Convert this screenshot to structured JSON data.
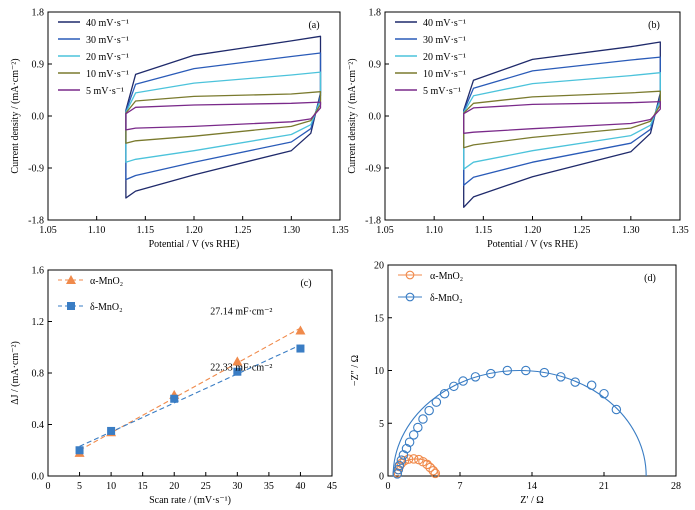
{
  "chart_data": [
    {
      "id": "a",
      "type": "line",
      "panel_label": "(a)",
      "xlabel": "Potential / V (vs RHE)",
      "ylabel": "Current density / (mA·cm⁻²)",
      "xlim": [
        1.05,
        1.35
      ],
      "ylim": [
        -1.8,
        1.8
      ],
      "xticks": [
        "1.05",
        "1.10",
        "1.15",
        "1.20",
        "1.25",
        "1.30",
        "1.35"
      ],
      "yticks": [
        "-1.8",
        "-0.9",
        "0.0",
        "0.9",
        "1.8"
      ],
      "legend_position": "top-left",
      "series": [
        {
          "name": "40 mV·s⁻¹",
          "color": "#1f2a6b",
          "x": [
            1.13,
            1.14,
            1.2,
            1.3,
            1.33,
            1.33,
            1.32,
            1.3,
            1.2,
            1.14,
            1.13,
            1.13
          ],
          "y": [
            0.1,
            0.72,
            1.05,
            1.3,
            1.38,
            0.4,
            -0.3,
            -0.6,
            -1.02,
            -1.3,
            -1.42,
            0.1
          ]
        },
        {
          "name": "30 mV·s⁻¹",
          "color": "#2a5bb8",
          "x": [
            1.13,
            1.14,
            1.2,
            1.3,
            1.33,
            1.33,
            1.32,
            1.3,
            1.2,
            1.14,
            1.13,
            1.13
          ],
          "y": [
            0.08,
            0.55,
            0.82,
            1.03,
            1.09,
            0.35,
            -0.22,
            -0.45,
            -0.8,
            -1.03,
            -1.1,
            0.08
          ]
        },
        {
          "name": "20 mV·s⁻¹",
          "color": "#4cc3db",
          "x": [
            1.13,
            1.14,
            1.2,
            1.3,
            1.33,
            1.33,
            1.32,
            1.3,
            1.2,
            1.14,
            1.13,
            1.13
          ],
          "y": [
            0.06,
            0.4,
            0.57,
            0.71,
            0.76,
            0.28,
            -0.15,
            -0.32,
            -0.6,
            -0.75,
            -0.8,
            0.06
          ]
        },
        {
          "name": "10 mV·s⁻¹",
          "color": "#7a7a2e",
          "x": [
            1.13,
            1.14,
            1.2,
            1.3,
            1.33,
            1.33,
            1.32,
            1.3,
            1.2,
            1.14,
            1.13,
            1.13
          ],
          "y": [
            0.05,
            0.26,
            0.34,
            0.38,
            0.42,
            0.2,
            -0.08,
            -0.18,
            -0.35,
            -0.43,
            -0.47,
            0.05
          ]
        },
        {
          "name": "5 mV·s⁻¹",
          "color": "#7a2a8a",
          "x": [
            1.13,
            1.14,
            1.2,
            1.3,
            1.33,
            1.33,
            1.32,
            1.3,
            1.2,
            1.14,
            1.13,
            1.13
          ],
          "y": [
            0.04,
            0.15,
            0.19,
            0.22,
            0.24,
            0.14,
            -0.05,
            -0.1,
            -0.18,
            -0.21,
            -0.24,
            0.04
          ]
        }
      ]
    },
    {
      "id": "b",
      "type": "line",
      "panel_label": "(b)",
      "xlabel": "Potential / V (vs RHE)",
      "ylabel": "Current density / (mA·cm⁻²)",
      "xlim": [
        1.05,
        1.35
      ],
      "ylim": [
        -1.8,
        1.8
      ],
      "xticks": [
        "1.05",
        "1.10",
        "1.15",
        "1.20",
        "1.25",
        "1.30",
        "1.35"
      ],
      "yticks": [
        "-1.8",
        "-0.9",
        "0.0",
        "0.9",
        "1.8"
      ],
      "legend_position": "top-left",
      "series": [
        {
          "name": "40 mV·s⁻¹",
          "color": "#1f2a6b",
          "x": [
            1.13,
            1.14,
            1.2,
            1.3,
            1.33,
            1.33,
            1.32,
            1.3,
            1.2,
            1.14,
            1.13,
            1.13
          ],
          "y": [
            0.1,
            0.62,
            0.98,
            1.2,
            1.28,
            0.4,
            -0.3,
            -0.62,
            -1.05,
            -1.4,
            -1.58,
            0.1
          ]
        },
        {
          "name": "30 mV·s⁻¹",
          "color": "#2a5bb8",
          "x": [
            1.13,
            1.14,
            1.2,
            1.3,
            1.33,
            1.33,
            1.32,
            1.3,
            1.2,
            1.14,
            1.13,
            1.13
          ],
          "y": [
            0.08,
            0.48,
            0.78,
            0.97,
            1.02,
            0.34,
            -0.23,
            -0.47,
            -0.8,
            -1.06,
            -1.2,
            0.08
          ]
        },
        {
          "name": "20 mV·s⁻¹",
          "color": "#4cc3db",
          "x": [
            1.13,
            1.14,
            1.2,
            1.3,
            1.33,
            1.33,
            1.32,
            1.3,
            1.2,
            1.14,
            1.13,
            1.13
          ],
          "y": [
            0.06,
            0.35,
            0.56,
            0.7,
            0.75,
            0.27,
            -0.16,
            -0.34,
            -0.6,
            -0.8,
            -0.92,
            0.06
          ]
        },
        {
          "name": "10 mV·s⁻¹",
          "color": "#7a7a2e",
          "x": [
            1.13,
            1.14,
            1.2,
            1.3,
            1.33,
            1.33,
            1.32,
            1.3,
            1.2,
            1.14,
            1.13,
            1.13
          ],
          "y": [
            0.05,
            0.22,
            0.33,
            0.4,
            0.43,
            0.19,
            -0.09,
            -0.21,
            -0.37,
            -0.5,
            -0.55,
            0.05
          ]
        },
        {
          "name": "5 mV·s⁻¹",
          "color": "#7a2a8a",
          "x": [
            1.13,
            1.14,
            1.2,
            1.3,
            1.33,
            1.33,
            1.32,
            1.3,
            1.2,
            1.14,
            1.13,
            1.13
          ],
          "y": [
            0.04,
            0.14,
            0.2,
            0.23,
            0.25,
            0.12,
            -0.06,
            -0.13,
            -0.22,
            -0.28,
            -0.3,
            0.04
          ]
        }
      ]
    },
    {
      "id": "c",
      "type": "scatter",
      "panel_label": "(c)",
      "xlabel": "Scan rate / (mV·s⁻¹)",
      "ylabel": "ΔJ / (mA·cm⁻²)",
      "xlim": [
        0,
        45
      ],
      "ylim": [
        0,
        1.6
      ],
      "xticks": [
        "0",
        "5",
        "10",
        "15",
        "20",
        "25",
        "30",
        "35",
        "40",
        "45"
      ],
      "yticks": [
        "0.0",
        "0.4",
        "0.8",
        "1.2",
        "1.6"
      ],
      "legend_position": "top-left",
      "series": [
        {
          "name": "α-MnO₂",
          "color": "#f08a4b",
          "marker": "triangle",
          "x": [
            5,
            10,
            20,
            30,
            40
          ],
          "y": [
            0.18,
            0.34,
            0.63,
            0.89,
            1.13
          ],
          "fit_label": "27.14 mF·cm⁻²"
        },
        {
          "name": "δ-MnO₂",
          "color": "#3a7dc4",
          "marker": "square",
          "x": [
            5,
            10,
            20,
            30,
            40
          ],
          "y": [
            0.2,
            0.35,
            0.6,
            0.81,
            0.99
          ],
          "fit_label": "22.33 mF·cm⁻²"
        }
      ]
    },
    {
      "id": "d",
      "type": "scatter",
      "panel_label": "(d)",
      "xlabel": "Z′ / Ω",
      "ylabel": "−Z″ / Ω",
      "xlim": [
        0,
        28
      ],
      "ylim": [
        0,
        20
      ],
      "xticks": [
        "0",
        "7",
        "14",
        "21",
        "28"
      ],
      "yticks": [
        "0",
        "5",
        "10",
        "15",
        "20"
      ],
      "legend_position": "top-left",
      "series": [
        {
          "name": "α-MnO₂",
          "color": "#f08a4b",
          "x": [
            0.9,
            1.0,
            1.1,
            1.3,
            1.6,
            2.0,
            2.5,
            3.0,
            3.4,
            3.8,
            4.1,
            4.4,
            4.6
          ],
          "y": [
            0.3,
            0.6,
            0.9,
            1.2,
            1.45,
            1.6,
            1.62,
            1.55,
            1.35,
            1.1,
            0.8,
            0.5,
            0.25
          ]
        },
        {
          "name": "δ-MnO₂",
          "color": "#3a7dc4",
          "x": [
            0.9,
            1.0,
            1.1,
            1.3,
            1.5,
            1.8,
            2.1,
            2.5,
            2.9,
            3.4,
            4.0,
            4.7,
            5.5,
            6.4,
            7.3,
            8.5,
            10.0,
            11.6,
            13.4,
            15.2,
            16.8,
            18.2,
            19.8,
            21.0,
            22.2
          ],
          "y": [
            0.2,
            0.6,
            1.0,
            1.5,
            2.0,
            2.6,
            3.2,
            3.9,
            4.6,
            5.4,
            6.2,
            7.0,
            7.8,
            8.5,
            9.0,
            9.4,
            9.7,
            10.0,
            10.0,
            9.8,
            9.4,
            8.9,
            8.6,
            7.8,
            6.3
          ]
        }
      ]
    }
  ]
}
